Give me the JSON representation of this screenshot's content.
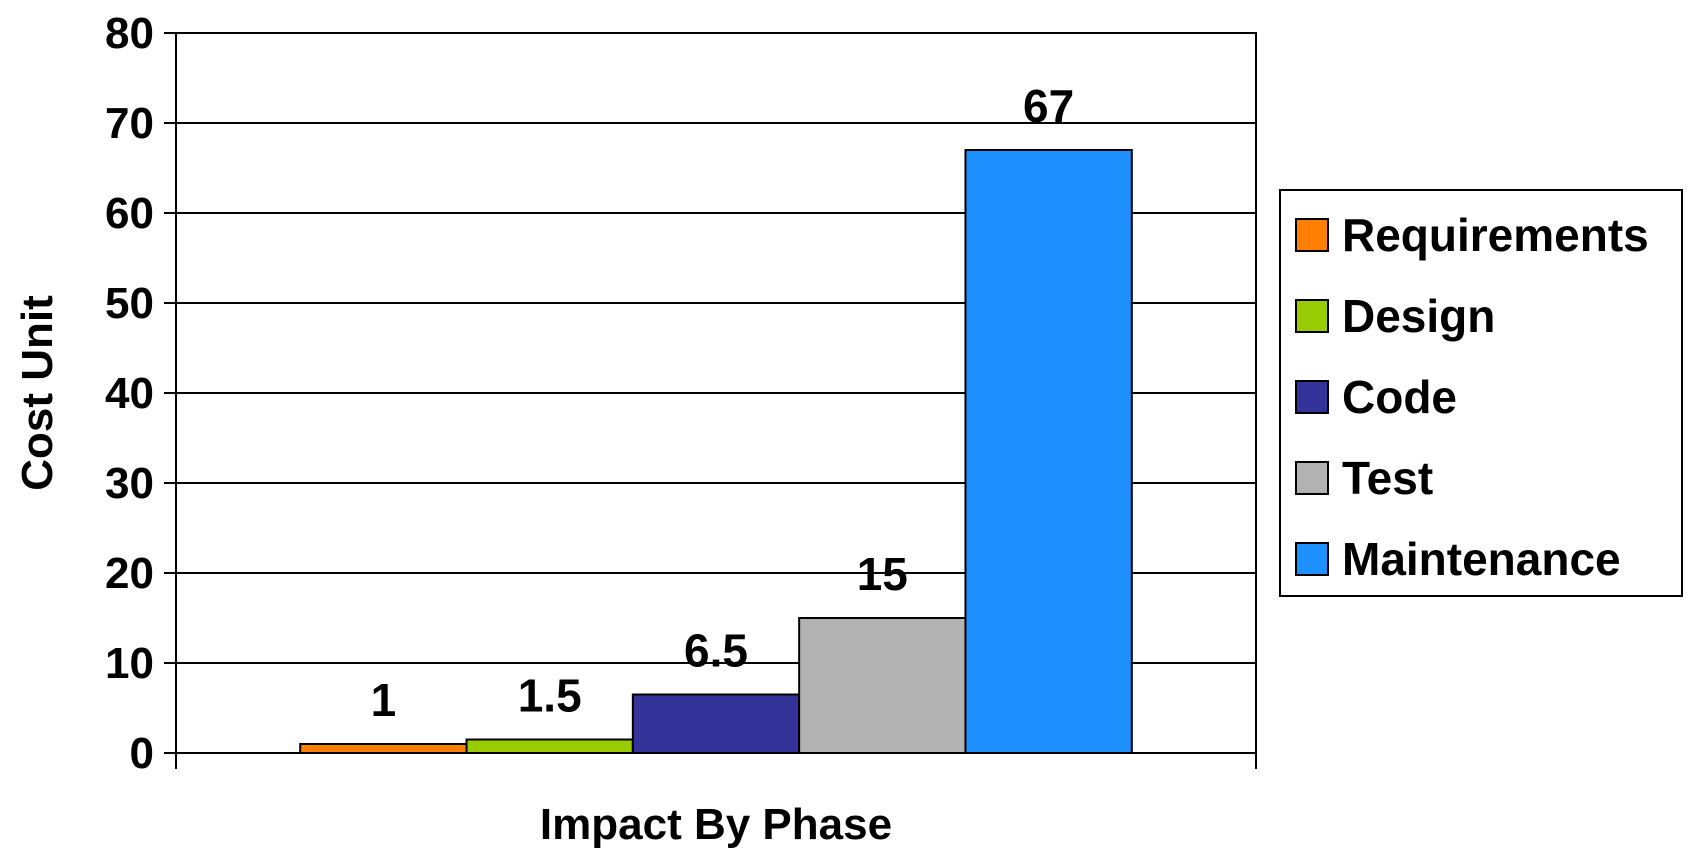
{
  "chart_data": {
    "type": "bar",
    "categories": [
      "Impact By Phase"
    ],
    "series": [
      {
        "name": "Requirements",
        "values": [
          1
        ],
        "color": "#FF8000",
        "label": "1"
      },
      {
        "name": "Design",
        "values": [
          1.5
        ],
        "color": "#99CC00",
        "label": "1.5"
      },
      {
        "name": "Code",
        "values": [
          6.5
        ],
        "color": "#333399",
        "label": "6.5"
      },
      {
        "name": "Test",
        "values": [
          15
        ],
        "color": "#B2B2B2",
        "label": "15"
      },
      {
        "name": "Maintenance",
        "values": [
          67
        ],
        "color": "#1E90FF",
        "label": "67"
      }
    ],
    "title": "",
    "xlabel": "Impact By Phase",
    "ylabel": "Cost Unit",
    "ylim": [
      0,
      80
    ],
    "yticks": [
      "0",
      "10",
      "20",
      "30",
      "40",
      "50",
      "60",
      "70",
      "80"
    ],
    "grid": true,
    "legend": "right"
  }
}
